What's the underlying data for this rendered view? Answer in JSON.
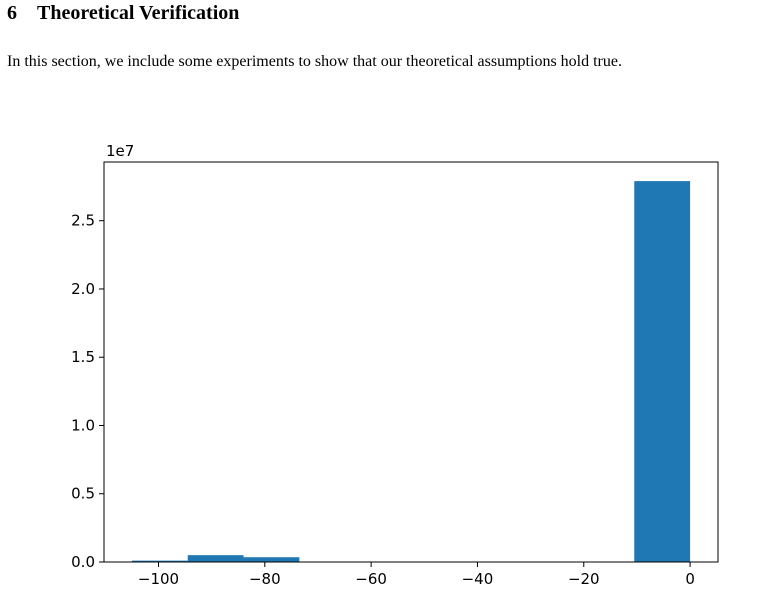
{
  "section": {
    "number": "6",
    "title": "Theoretical Verification",
    "body": "In this section, we include some experiments to show that our theoretical assumptions hold true."
  },
  "chart_data": {
    "type": "bar",
    "histogram": true,
    "bins": [
      {
        "x0": -105.0,
        "x1": -94.5,
        "value": 100000
      },
      {
        "x0": -94.5,
        "x1": -84.0,
        "value": 500000
      },
      {
        "x0": -84.0,
        "x1": -73.5,
        "value": 350000
      },
      {
        "x0": -73.5,
        "x1": -63.0,
        "value": 20000
      },
      {
        "x0": -63.0,
        "x1": -52.5,
        "value": 15000
      },
      {
        "x0": -52.5,
        "x1": -42.0,
        "value": 10000
      },
      {
        "x0": -42.0,
        "x1": -31.5,
        "value": 8000
      },
      {
        "x0": -31.5,
        "x1": -21.0,
        "value": 8000
      },
      {
        "x0": -21.0,
        "x1": -10.5,
        "value": 10000
      },
      {
        "x0": -10.5,
        "x1": 0.0,
        "value": 27900000
      }
    ],
    "xlim": [
      -110.25,
      5.25
    ],
    "ylim": [
      0,
      29300000
    ],
    "xticks": [
      -100,
      -80,
      -60,
      -40,
      -20,
      0
    ],
    "xtick_labels": [
      "−100",
      "−80",
      "−60",
      "−40",
      "−20",
      "0"
    ],
    "yticks": [
      0,
      5000000,
      10000000,
      15000000,
      20000000,
      25000000
    ],
    "ytick_labels": [
      "0.0",
      "0.5",
      "1.0",
      "1.5",
      "2.0",
      "2.5"
    ],
    "y_offset_label": "1e7",
    "title": "",
    "xlabel": "",
    "ylabel": "",
    "grid": false,
    "bar_color": "#1f77b4"
  }
}
